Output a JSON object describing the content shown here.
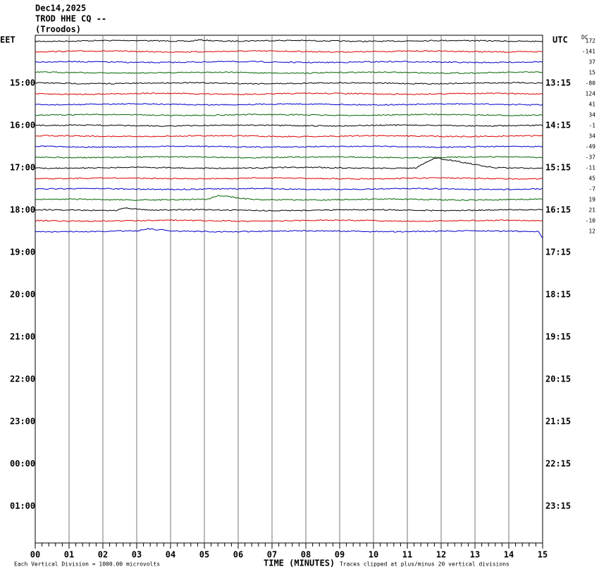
{
  "header": {
    "date": "Dec14,2025",
    "station": "TROD HHE CQ --",
    "location": "(Troodos)"
  },
  "left_axis": {
    "title": "EET",
    "labels": [
      "15:00",
      "16:00",
      "17:00",
      "18:00",
      "19:00",
      "20:00",
      "21:00",
      "22:00",
      "23:00",
      "00:00",
      "01:00"
    ]
  },
  "right_axis": {
    "title": "UTC",
    "labels": [
      "13:15",
      "14:15",
      "15:15",
      "16:15",
      "17:15",
      "18:15",
      "19:15",
      "20:15",
      "21:15",
      "22:15",
      "23:15"
    ]
  },
  "dc_offsets": {
    "title": "DC",
    "values": [
      172,
      -141,
      37,
      15,
      -80,
      124,
      41,
      34,
      -1,
      34,
      -49,
      -37,
      -11,
      45,
      -7,
      19,
      21,
      -10,
      12
    ]
  },
  "x_axis": {
    "title": "TIME (MINUTES)",
    "labels": [
      "00",
      "01",
      "02",
      "03",
      "04",
      "05",
      "06",
      "07",
      "08",
      "09",
      "10",
      "11",
      "12",
      "13",
      "14",
      "15"
    ]
  },
  "footer": {
    "scale": "Each Vertical Division = 1000.00 microvolts",
    "clip": "Traces clipped at plus/minus 20 vertical divisions"
  }
}
